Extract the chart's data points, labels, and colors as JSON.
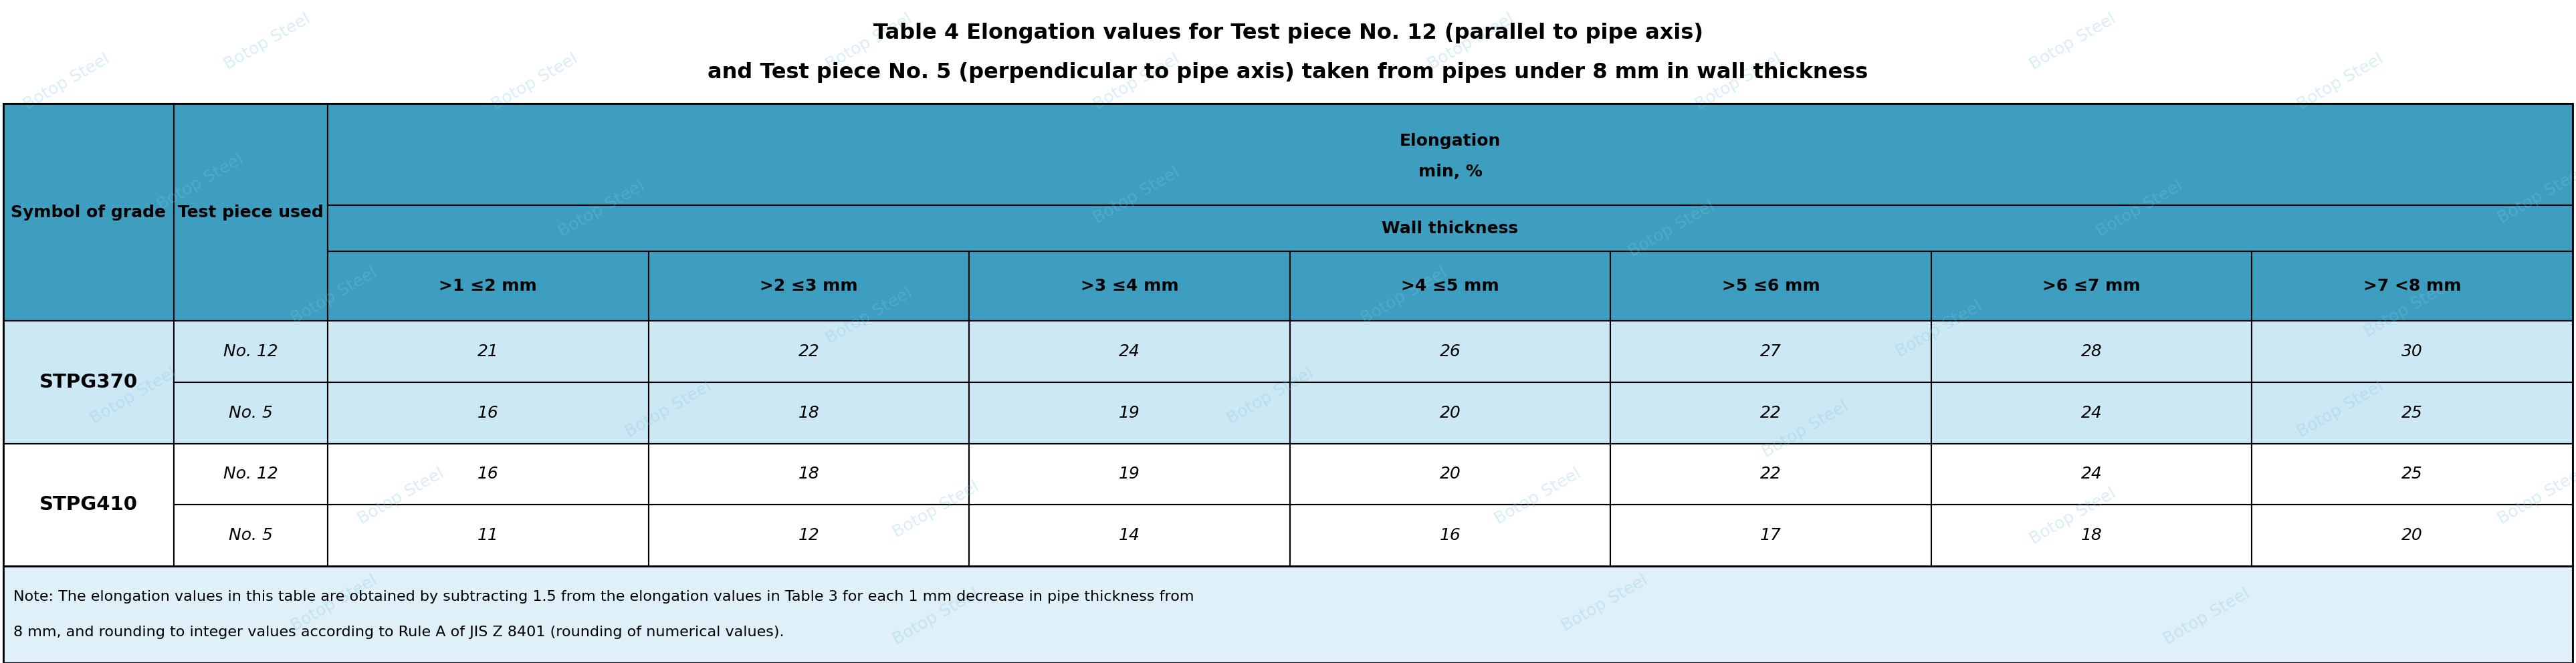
{
  "title_line1": "Table 4 Elongation values for Test piece No. 12 (parallel to pipe axis)",
  "title_line2": "and Test piece No. 5 (perpendicular to pipe axis) taken from pipes under 8 mm in wall thickness",
  "header_col1": "Symbol of grade",
  "header_col2": "Test piece used",
  "header_elongation": "Elongation",
  "header_min_pct": "min, %",
  "header_wall": "Wall thickness",
  "wall_cols": [
    ">1 ≤2 mm",
    ">2 ≤3 mm",
    ">3 ≤4 mm",
    ">4 ≤5 mm",
    ">5 ≤6 mm",
    ">6 ≤7 mm",
    ">7 <8 mm"
  ],
  "grades": [
    "STPG370",
    "STPG410"
  ],
  "test_pieces": [
    "No. 12",
    "No. 5"
  ],
  "data": {
    "STPG370": {
      "No. 12": [
        21,
        22,
        24,
        26,
        27,
        28,
        30
      ],
      "No. 5": [
        16,
        18,
        19,
        20,
        22,
        24,
        25
      ]
    },
    "STPG410": {
      "No. 12": [
        16,
        18,
        19,
        20,
        22,
        24,
        25
      ],
      "No. 5": [
        11,
        12,
        14,
        16,
        17,
        18,
        20
      ]
    }
  },
  "note_line1": "Note: The elongation values in this table are obtained by subtracting 1.5 from the elongation values in Table 3 for each 1 mm decrease in pipe thickness from",
  "note_line2": "8 mm, and rounding to integer values according to Rule A of JIS Z 8401 (rounding of numerical values).",
  "header_bg": "#3d9ec0",
  "grade0_bg": "#cce8f4",
  "grade1_bg": "#ffffff",
  "note_bg": "#dff0f8",
  "border_color": "#000000",
  "title_color": "#000000",
  "header_text_color": "#000000",
  "data_text_color": "#000000",
  "note_text_color": "#000000",
  "watermark_color": "#7ec8e0",
  "title_fontsize": 23,
  "header_fontsize": 18,
  "data_fontsize": 18,
  "note_fontsize": 16,
  "grade_fontsize": 21
}
